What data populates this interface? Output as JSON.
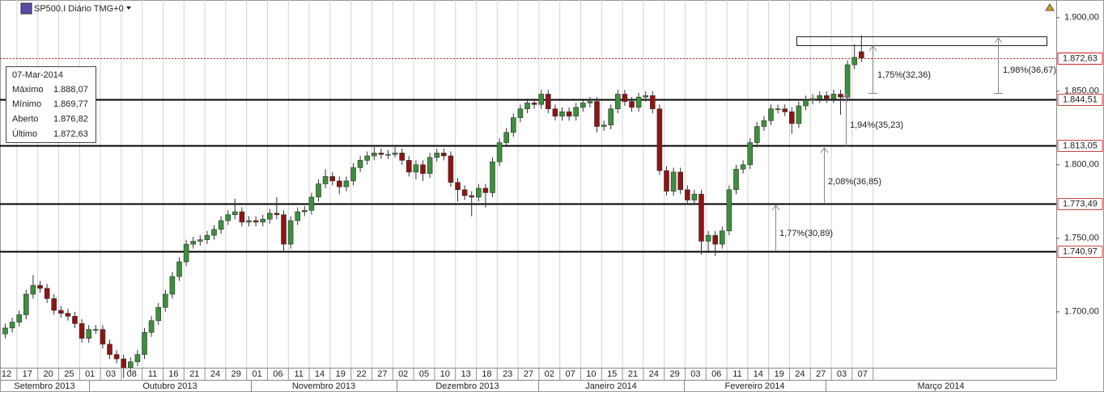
{
  "chart_data": {
    "type": "candlestick",
    "title": "SP500.I Diário TMG+0",
    "up_color": "#3d8f3d",
    "down_color": "#8e1414",
    "ylim": [
      1662,
      1912
    ],
    "yticks": [
      {
        "value": 1900,
        "label": "1.900,00"
      },
      {
        "value": 1850,
        "label": "1.850,00"
      },
      {
        "value": 1800,
        "label": "1.800,00"
      },
      {
        "value": 1750,
        "label": "1.750,00"
      },
      {
        "value": 1700,
        "label": "1.700,00"
      }
    ],
    "last_price": {
      "value": 1872.63,
      "label": "1.872,63",
      "color": "#d02020"
    },
    "levels": [
      {
        "value": 1844.51,
        "label": "1.844,51"
      },
      {
        "value": 1813.05,
        "label": "1.813,05"
      },
      {
        "value": 1773.49,
        "label": "1.773,49"
      },
      {
        "value": 1740.97,
        "label": "1.740,97"
      }
    ],
    "categories": [
      "12",
      null,
      null,
      "17",
      null,
      null,
      "20",
      null,
      null,
      "25",
      null,
      null,
      "01",
      null,
      null,
      "03",
      null,
      null,
      "08",
      null,
      null,
      "11",
      null,
      null,
      "16",
      null,
      null,
      "21",
      null,
      null,
      "24",
      null,
      null,
      "29",
      null,
      null,
      "01",
      null,
      null,
      "06",
      null,
      null,
      "11",
      null,
      null,
      "14",
      null,
      null,
      "19",
      null,
      null,
      "22",
      null,
      null,
      "27",
      null,
      null,
      "02",
      null,
      null,
      "05",
      null,
      null,
      "10",
      null,
      null,
      "13",
      null,
      null,
      "18",
      null,
      null,
      "23",
      null,
      null,
      "27",
      null,
      null,
      "02",
      null,
      null,
      "07",
      null,
      null,
      "10",
      null,
      null,
      "15",
      null,
      null,
      "21",
      null,
      null,
      "24",
      null,
      null,
      "29",
      null,
      null,
      "03",
      null,
      null,
      "06",
      null,
      null,
      "11",
      null,
      null,
      "14",
      null,
      null,
      "19",
      null,
      null,
      "24",
      null,
      null,
      "27",
      null,
      null,
      "03",
      null,
      null,
      "07"
    ],
    "months": [
      "Setembro 2013",
      "Outubro 2013",
      "Novembro 2013",
      "Dezembro 2013",
      "Janeiro 2014",
      "Fevereiro 2014",
      "Março 2014"
    ],
    "open": [
      1685,
      1689,
      1693,
      1698,
      1712,
      1718,
      1716,
      1709,
      1701,
      1699,
      1697,
      1692,
      1682,
      1688,
      1688,
      1678,
      1671,
      1668,
      1662,
      1666,
      1671,
      1686,
      1694,
      1703,
      1712,
      1724,
      1734,
      1746,
      1748,
      1749,
      1752,
      1756,
      1762,
      1766,
      1768,
      1761,
      1762,
      1761,
      1763,
      1767,
      1766,
      1746,
      1762,
      1768,
      1769,
      1778,
      1787,
      1792,
      1789,
      1785,
      1789,
      1798,
      1803,
      1806,
      1808,
      1807,
      1807,
      1808,
      1803,
      1795,
      1800,
      1794,
      1805,
      1808,
      1806,
      1788,
      1783,
      1779,
      1778,
      1784,
      1781,
      1802,
      1815,
      1822,
      1832,
      1838,
      1842,
      1841,
      1848,
      1838,
      1833,
      1836,
      1833,
      1839,
      1842,
      1843,
      1826,
      1827,
      1838,
      1848,
      1843,
      1839,
      1846,
      1847,
      1838,
      1796,
      1782,
      1795,
      1783,
      1776,
      1780,
      1748,
      1752,
      1746,
      1755,
      1783,
      1797,
      1800,
      1815,
      1826,
      1830,
      1838,
      1838,
      1836,
      1828,
      1840,
      1844,
      1845,
      1847,
      1845,
      1848,
      1846,
      1868,
      1876.82
    ],
    "high": [
      1692,
      1696,
      1701,
      1715,
      1725,
      1721,
      1719,
      1712,
      1704,
      1702,
      1700,
      1695,
      1691,
      1691,
      1691,
      1681,
      1674,
      1671,
      1669,
      1674,
      1689,
      1697,
      1706,
      1715,
      1727,
      1737,
      1749,
      1751,
      1752,
      1755,
      1759,
      1765,
      1769,
      1777,
      1771,
      1765,
      1765,
      1766,
      1770,
      1778,
      1769,
      1765,
      1771,
      1772,
      1781,
      1790,
      1797,
      1795,
      1792,
      1792,
      1801,
      1806,
      1809,
      1812,
      1811,
      1810,
      1812,
      1811,
      1806,
      1803,
      1803,
      1808,
      1811,
      1811,
      1809,
      1791,
      1786,
      1782,
      1787,
      1787,
      1805,
      1818,
      1825,
      1835,
      1841,
      1845,
      1845,
      1851,
      1851,
      1841,
      1839,
      1839,
      1842,
      1845,
      1846,
      1846,
      1830,
      1841,
      1851,
      1851,
      1846,
      1849,
      1850,
      1850,
      1841,
      1799,
      1798,
      1798,
      1786,
      1783,
      1783,
      1755,
      1755,
      1758,
      1786,
      1800,
      1803,
      1818,
      1829,
      1833,
      1841,
      1841,
      1841,
      1839,
      1843,
      1847,
      1848,
      1850,
      1850,
      1851,
      1851,
      1871,
      1882,
      1888.07
    ],
    "low": [
      1682,
      1686,
      1690,
      1695,
      1709,
      1713,
      1706,
      1698,
      1696,
      1694,
      1689,
      1679,
      1679,
      1685,
      1675,
      1668,
      1665,
      1655,
      1659,
      1663,
      1668,
      1683,
      1691,
      1700,
      1709,
      1721,
      1731,
      1743,
      1745,
      1746,
      1749,
      1753,
      1759,
      1763,
      1758,
      1758,
      1758,
      1758,
      1760,
      1763,
      1741,
      1743,
      1759,
      1765,
      1766,
      1775,
      1784,
      1786,
      1780,
      1782,
      1786,
      1795,
      1800,
      1803,
      1804,
      1804,
      1805,
      1800,
      1792,
      1790,
      1789,
      1791,
      1802,
      1803,
      1785,
      1775,
      1776,
      1765,
      1775,
      1771,
      1778,
      1799,
      1812,
      1819,
      1829,
      1835,
      1838,
      1838,
      1835,
      1830,
      1830,
      1830,
      1830,
      1836,
      1839,
      1822,
      1823,
      1824,
      1835,
      1840,
      1836,
      1836,
      1843,
      1835,
      1793,
      1779,
      1779,
      1780,
      1773,
      1773,
      1739,
      1740,
      1738,
      1743,
      1752,
      1780,
      1794,
      1797,
      1812,
      1823,
      1827,
      1835,
      1833,
      1821,
      1825,
      1837,
      1841,
      1842,
      1842,
      1842,
      1834,
      1843,
      1865,
      1869.77
    ],
    "close": [
      1689,
      1693,
      1698,
      1712,
      1718,
      1716,
      1709,
      1701,
      1699,
      1697,
      1692,
      1682,
      1688,
      1688,
      1678,
      1671,
      1668,
      1662,
      1666,
      1671,
      1686,
      1694,
      1703,
      1712,
      1724,
      1734,
      1746,
      1748,
      1749,
      1752,
      1756,
      1762,
      1766,
      1768,
      1761,
      1762,
      1761,
      1763,
      1767,
      1766,
      1746,
      1762,
      1768,
      1769,
      1778,
      1787,
      1792,
      1789,
      1785,
      1789,
      1798,
      1803,
      1806,
      1808,
      1807,
      1807,
      1808,
      1803,
      1795,
      1800,
      1794,
      1805,
      1808,
      1806,
      1788,
      1783,
      1779,
      1778,
      1784,
      1781,
      1802,
      1815,
      1822,
      1832,
      1838,
      1842,
      1841,
      1848,
      1838,
      1833,
      1836,
      1833,
      1839,
      1842,
      1843,
      1826,
      1827,
      1838,
      1848,
      1843,
      1839,
      1846,
      1847,
      1838,
      1796,
      1782,
      1795,
      1783,
      1776,
      1780,
      1748,
      1752,
      1746,
      1755,
      1783,
      1797,
      1800,
      1815,
      1826,
      1830,
      1838,
      1838,
      1836,
      1828,
      1840,
      1844,
      1845,
      1847,
      1845,
      1848,
      1846,
      1868,
      1873,
      1872.63
    ],
    "annotations": [
      "1,77%(30,89)",
      "2,08%(36,85)",
      "1,94%(35,23)",
      "1,75%(32,36)",
      "1,98%(36,67)"
    ],
    "tooltip": {
      "date": "07-Mar-2014",
      "rows": [
        {
          "label": "Máximo",
          "value": "1.888,07"
        },
        {
          "label": "Mínimo",
          "value": "1.869,77"
        },
        {
          "label": "Aberto",
          "value": "1.876,82"
        },
        {
          "label": "Último",
          "value": "1.872,63"
        }
      ]
    }
  }
}
